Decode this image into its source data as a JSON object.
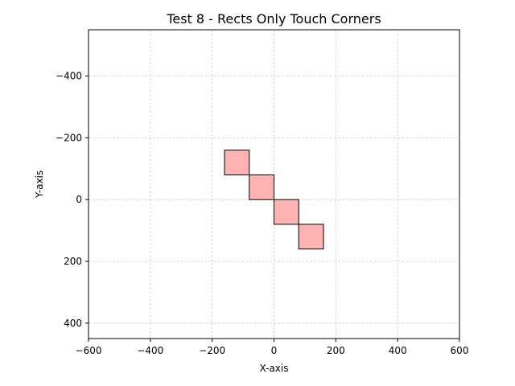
{
  "chart_data": {
    "type": "rectangles",
    "title": "Test 8 - Rects Only Touch Corners",
    "xlabel": "X-axis",
    "ylabel": "Y-axis",
    "xlim": [
      -600,
      600
    ],
    "ylim": [
      -550,
      450
    ],
    "y_inverted": true,
    "grid": true,
    "x_ticks": [
      -600,
      -400,
      -200,
      0,
      200,
      400,
      600
    ],
    "x_tick_labels": [
      "−600",
      "−400",
      "−200",
      "0",
      "200",
      "400",
      "600"
    ],
    "y_ticks": [
      -400,
      -200,
      0,
      200,
      400
    ],
    "y_tick_labels": [
      "−400",
      "−200",
      "0",
      "200",
      "400"
    ],
    "rectangles": [
      {
        "x": -160,
        "y": -160,
        "width": 80,
        "height": 80
      },
      {
        "x": -80,
        "y": -80,
        "width": 80,
        "height": 80
      },
      {
        "x": 0,
        "y": 0,
        "width": 80,
        "height": 80
      },
      {
        "x": 80,
        "y": 80,
        "width": 80,
        "height": 80
      }
    ],
    "fill_color": "#ffb3b3",
    "edge_color": "#000000"
  }
}
